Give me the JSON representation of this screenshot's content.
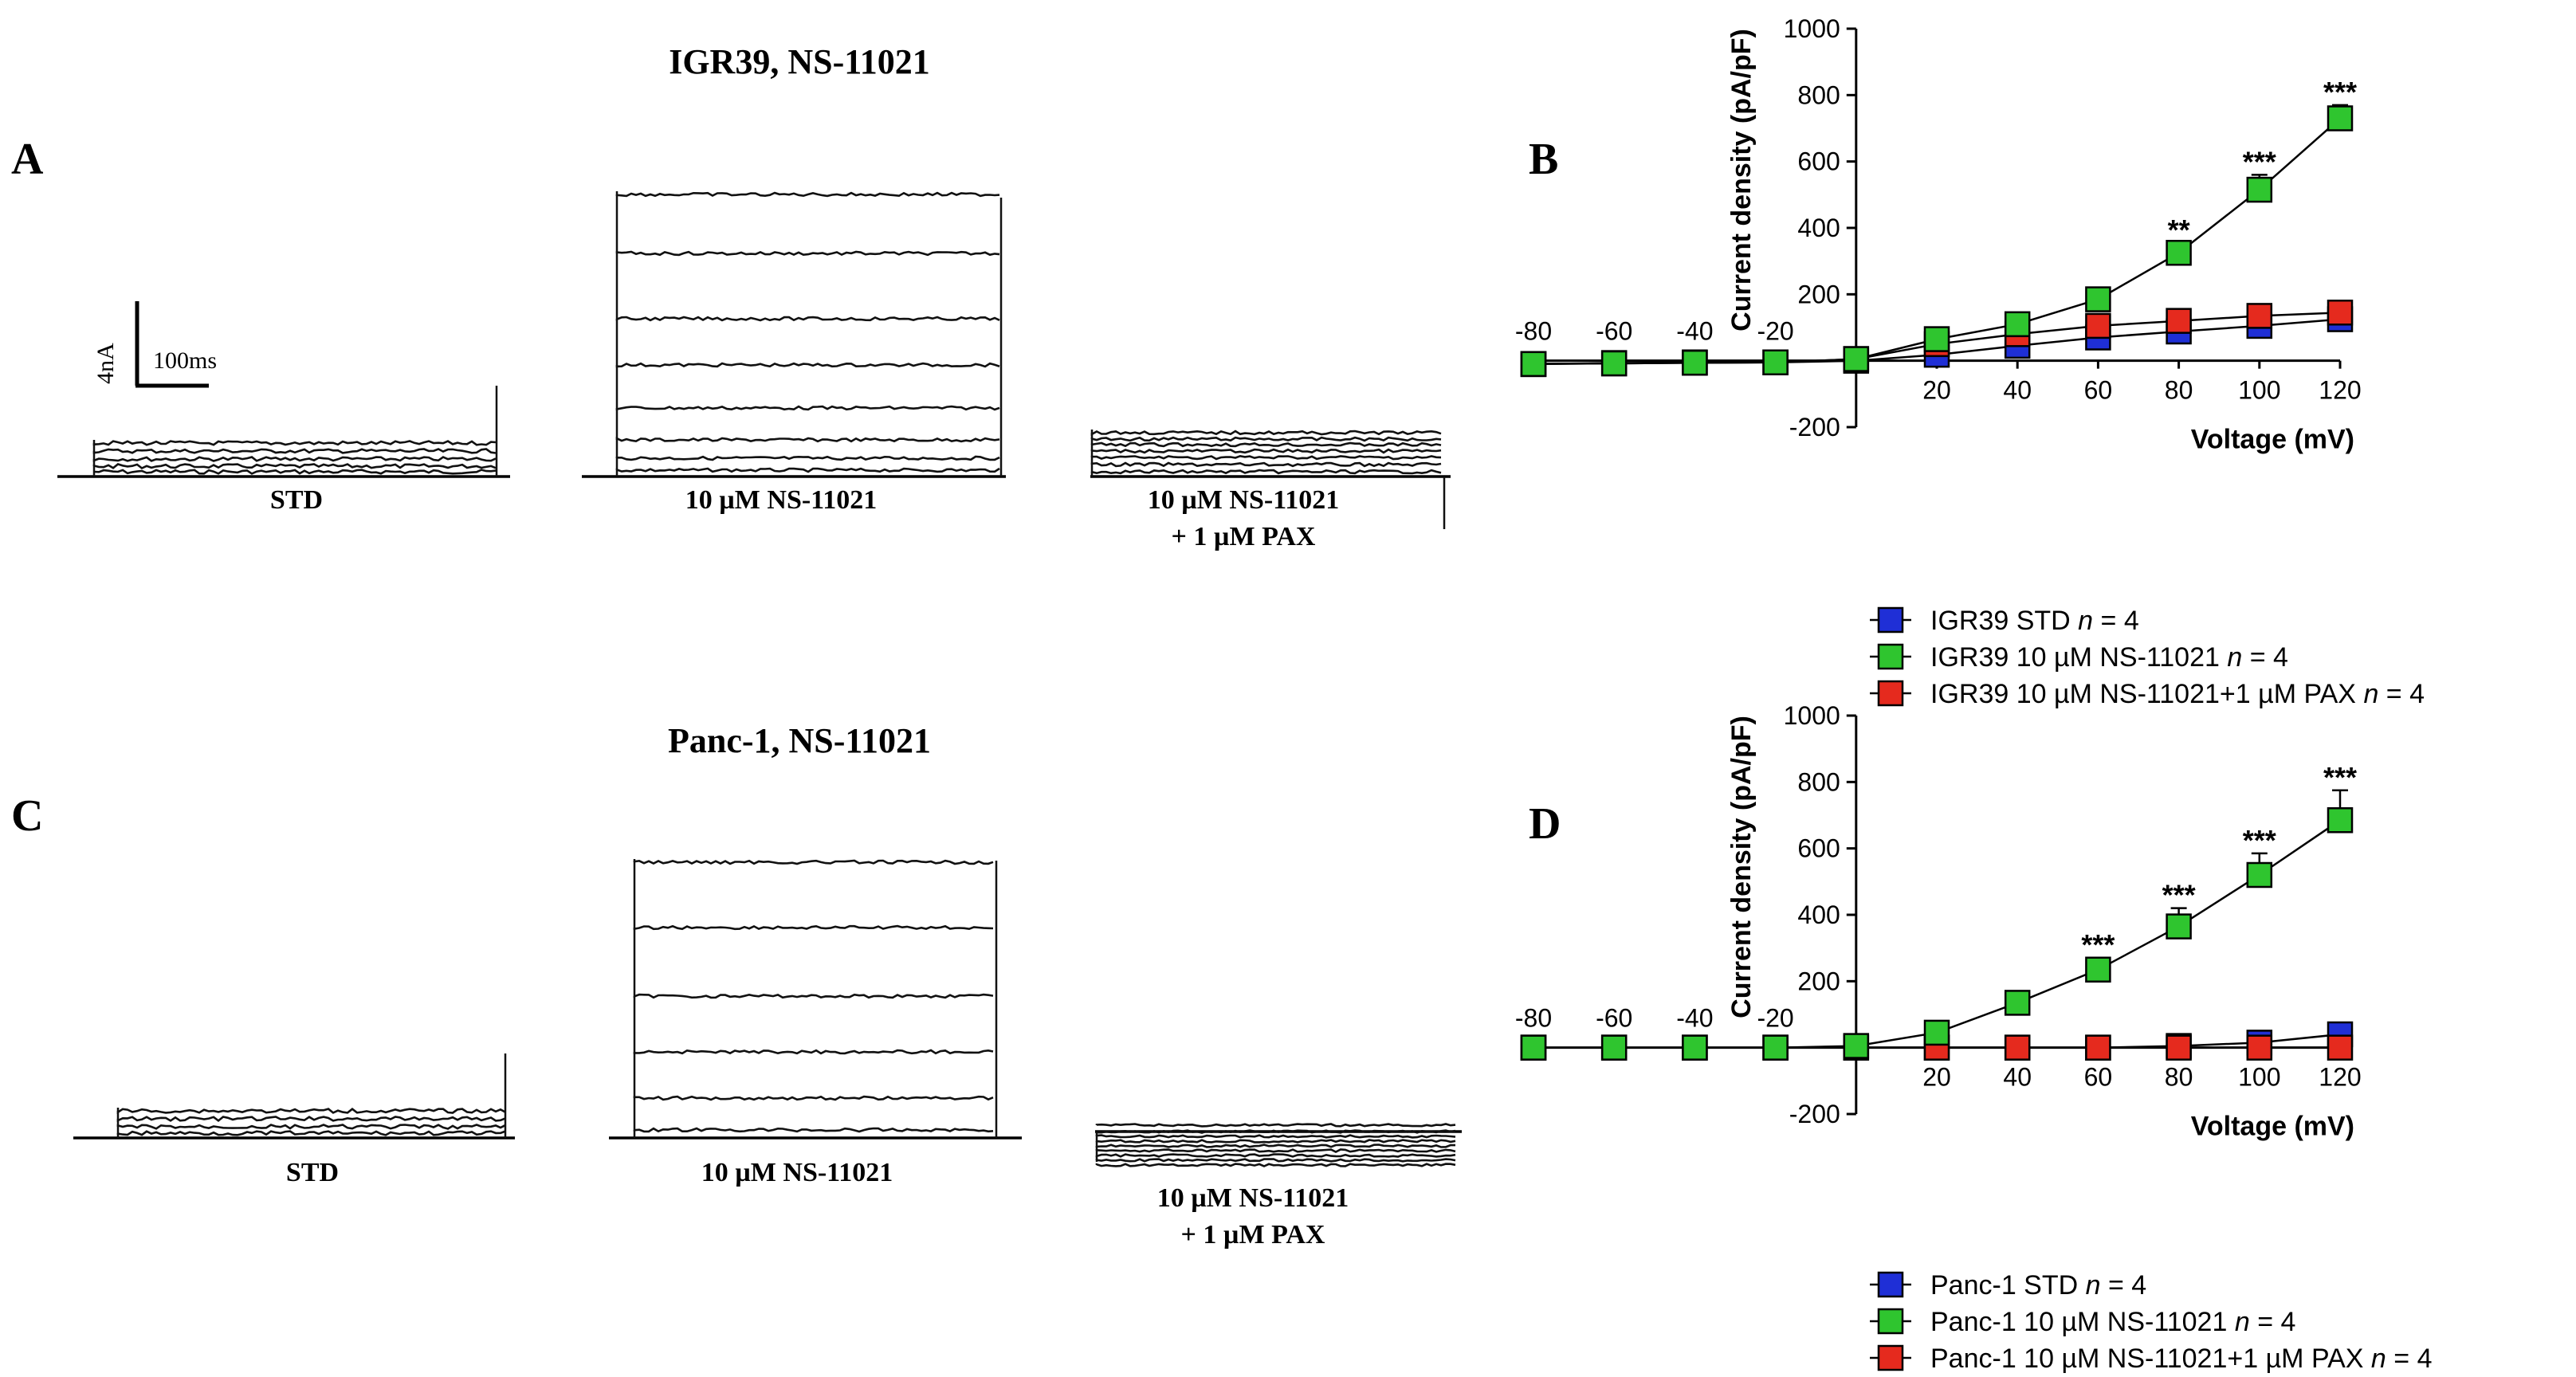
{
  "panels": {
    "A": "A",
    "B": "B",
    "C": "C",
    "D": "D"
  },
  "traces": {
    "top": {
      "title": "IGR39, NS-11021",
      "conditions": [
        "STD",
        "10 µM NS-11021",
        "10 µM NS-11021",
        "+ 1 µM PAX"
      ],
      "scalebar": {
        "current": "4nA",
        "time": "100ms"
      }
    },
    "bottom": {
      "title": "Panc-1, NS-11021",
      "conditions": [
        "STD",
        "10 µM NS-11021",
        "10 µM NS-11021",
        "+ 1 µM PAX"
      ]
    }
  },
  "chart_data": [
    {
      "type": "line",
      "panel": "B",
      "xlabel": "Voltage (mV)",
      "ylabel": "Current density (pA/pF)",
      "xlim": [
        -80,
        120
      ],
      "ylim": [
        -200,
        1000
      ],
      "xticks": [
        -80,
        -60,
        -40,
        -20,
        20,
        40,
        60,
        80,
        100,
        120
      ],
      "yticks": [
        -200,
        200,
        400,
        600,
        800,
        1000
      ],
      "x": [
        -80,
        -60,
        -40,
        -20,
        0,
        20,
        40,
        60,
        80,
        100,
        120
      ],
      "series": [
        {
          "name": "IGR39 STD",
          "n_label": "n = 4",
          "color": "#1f2fd6",
          "values": [
            -10,
            -7,
            -5,
            -5,
            0,
            18,
            45,
            70,
            88,
            105,
            125
          ],
          "errors": []
        },
        {
          "name": "IGR39 10 µM NS-11021",
          "n_label": "n = 4",
          "color": "#2fc52f",
          "values": [
            -10,
            -8,
            -6,
            -5,
            5,
            65,
            110,
            185,
            325,
            515,
            730
          ],
          "errors": [
            0,
            0,
            0,
            0,
            0,
            0,
            0,
            0,
            30,
            45,
            40
          ]
        },
        {
          "name": "IGR39 10 µM NS-11021+1 µM PAX",
          "n_label": "n = 4",
          "color": "#e52a1e",
          "values": [
            -10,
            -8,
            -6,
            -5,
            5,
            50,
            80,
            105,
            120,
            135,
            145
          ],
          "errors": []
        }
      ],
      "annotations": [
        {
          "x": 80,
          "text": "**"
        },
        {
          "x": 100,
          "text": "***"
        },
        {
          "x": 120,
          "text": "***"
        }
      ],
      "legend": "bottom"
    },
    {
      "type": "line",
      "panel": "D",
      "xlabel": "Voltage (mV)",
      "ylabel": "Current density (pA/pF)",
      "xlim": [
        -80,
        120
      ],
      "ylim": [
        -200,
        1000
      ],
      "xticks": [
        -80,
        -60,
        -40,
        -20,
        20,
        40,
        60,
        80,
        100,
        120
      ],
      "yticks": [
        -200,
        200,
        400,
        600,
        800,
        1000
      ],
      "x": [
        -80,
        -60,
        -40,
        -20,
        0,
        20,
        40,
        60,
        80,
        100,
        120
      ],
      "series": [
        {
          "name": "Panc-1 STD",
          "n_label": "n = 4",
          "color": "#1f2fd6",
          "values": [
            0,
            0,
            0,
            0,
            0,
            0,
            0,
            0,
            5,
            15,
            40
          ],
          "errors": []
        },
        {
          "name": "Panc-1 10 µM NS-11021",
          "n_label": "n = 4",
          "color": "#2fc52f",
          "values": [
            0,
            0,
            0,
            0,
            5,
            45,
            135,
            235,
            365,
            520,
            685
          ],
          "errors": [
            0,
            0,
            0,
            0,
            0,
            0,
            0,
            35,
            55,
            65,
            90
          ]
        },
        {
          "name": "Panc-1 10 µM NS-11021+1 µM PAX",
          "n_label": "n = 4",
          "color": "#e52a1e",
          "values": [
            0,
            0,
            0,
            0,
            0,
            0,
            0,
            0,
            0,
            0,
            0
          ],
          "errors": []
        }
      ],
      "annotations": [
        {
          "x": 60,
          "text": "***"
        },
        {
          "x": 80,
          "text": "***"
        },
        {
          "x": 100,
          "text": "***"
        },
        {
          "x": 120,
          "text": "***"
        }
      ],
      "legend": "bottom"
    }
  ]
}
